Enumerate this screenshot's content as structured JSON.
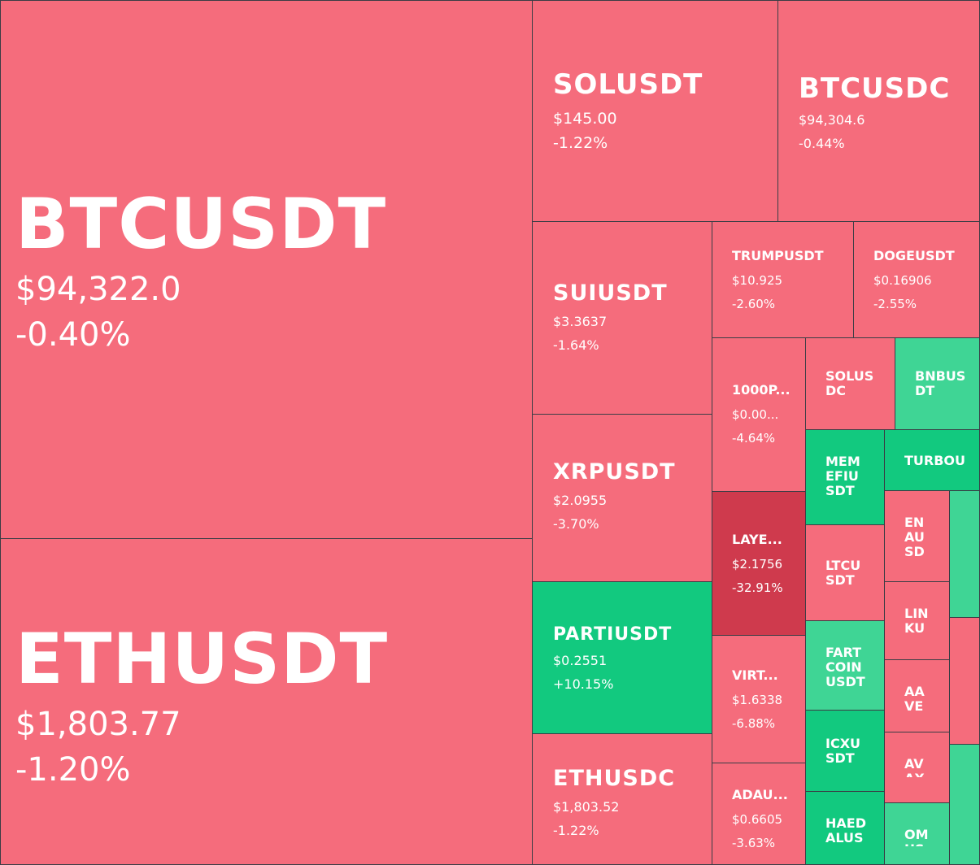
{
  "colors": {
    "down": "#f56c7c",
    "down_strong": "#cf3a4d",
    "up": "#12c97f",
    "up_light": "#3fd595",
    "border": "#3a3d45"
  },
  "tiles": [
    {
      "symbol": "BTCUSDT",
      "price": "$94,322.0",
      "change": "-0.40%",
      "tone": "down"
    },
    {
      "symbol": "ETHUSDT",
      "price": "$1,803.77",
      "change": "-1.20%",
      "tone": "down"
    },
    {
      "symbol": "SOLUSDT",
      "price": "$145.00",
      "change": "-1.22%",
      "tone": "down"
    },
    {
      "symbol": "BTCUSDC",
      "price": "$94,304.6",
      "change": "-0.44%",
      "tone": "down"
    },
    {
      "symbol": "SUIUSDT",
      "price": "$3.3637",
      "change": "-1.64%",
      "tone": "down"
    },
    {
      "symbol": "TRUMPUSDT",
      "price": "$10.925",
      "change": "-2.60%",
      "tone": "down"
    },
    {
      "symbol": "DOGEUSDT",
      "price": "$0.16906",
      "change": "-2.55%",
      "tone": "down"
    },
    {
      "symbol": "XRPUSDT",
      "price": "$2.0955",
      "change": "-3.70%",
      "tone": "down"
    },
    {
      "symbol": "1000P...",
      "price": "$0.00...",
      "change": "-4.64%",
      "tone": "down"
    },
    {
      "symbol": "SOLUS\nDC",
      "price": "",
      "change": "",
      "tone": "down"
    },
    {
      "symbol": "BNBUS\nDT",
      "price": "",
      "change": "",
      "tone": "up_light"
    },
    {
      "symbol": "MEM\nEFIU\nSDT",
      "price": "",
      "change": "",
      "tone": "up"
    },
    {
      "symbol": "TURBOU",
      "price": "",
      "change": "",
      "tone": "up"
    },
    {
      "symbol": "LAYE...",
      "price": "$2.1756",
      "change": "-32.91%",
      "tone": "down_strong"
    },
    {
      "symbol": "LTCU\nSDT",
      "price": "",
      "change": "",
      "tone": "down"
    },
    {
      "symbol": "EN\nAU\nSD",
      "price": "",
      "change": "",
      "tone": "down"
    },
    {
      "symbol": "",
      "price": "",
      "change": "",
      "tone": "up_light"
    },
    {
      "symbol": "PARTIUSDT",
      "price": "$0.2551",
      "change": "+10.15%",
      "tone": "up"
    },
    {
      "symbol": "LIN\nKU",
      "price": "",
      "change": "",
      "tone": "down"
    },
    {
      "symbol": "",
      "price": "",
      "change": "",
      "tone": "down"
    },
    {
      "symbol": "VIRT...",
      "price": "$1.6338",
      "change": "-6.88%",
      "tone": "down"
    },
    {
      "symbol": "FART\nCOIN\nUSDT",
      "price": "",
      "change": "",
      "tone": "up_light"
    },
    {
      "symbol": "AA\nVE",
      "price": "",
      "change": "",
      "tone": "down"
    },
    {
      "symbol": "ETHUSDC",
      "price": "$1,803.52",
      "change": "-1.22%",
      "tone": "down"
    },
    {
      "symbol": "ICXU\nSDT",
      "price": "",
      "change": "",
      "tone": "up"
    },
    {
      "symbol": "AV\nAX",
      "price": "",
      "change": "",
      "tone": "down"
    },
    {
      "symbol": "",
      "price": "",
      "change": "",
      "tone": "up_light"
    },
    {
      "symbol": "ADAU...",
      "price": "$0.6605",
      "change": "-3.63%",
      "tone": "down"
    },
    {
      "symbol": "HAED\nALUS",
      "price": "",
      "change": "",
      "tone": "up"
    },
    {
      "symbol": "OM\nUS",
      "price": "",
      "change": "",
      "tone": "up_light"
    }
  ]
}
